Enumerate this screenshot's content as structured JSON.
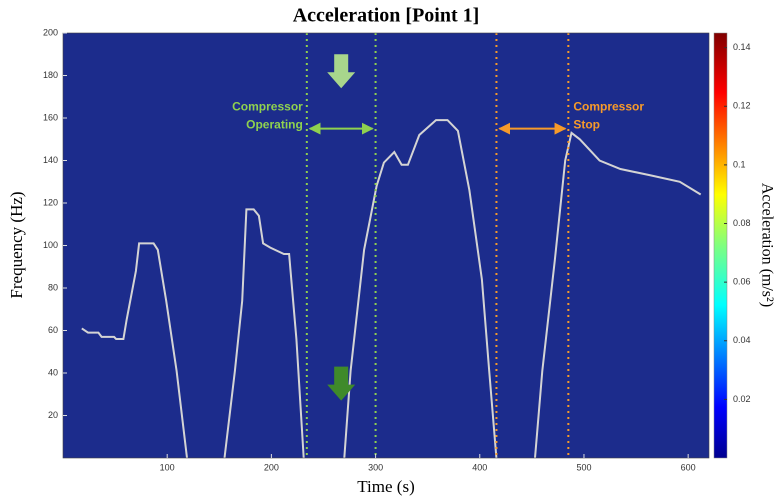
{
  "chart_data": {
    "type": "spectrogram",
    "title": "Acceleration [Point 1]",
    "x_label": "Time (s)",
    "y_label": "Frequency (Hz)",
    "colorbar_label": "Acceleration (m/s²)",
    "xlim": [
      0,
      620
    ],
    "xticks": [
      100,
      200,
      300,
      400,
      500,
      600
    ],
    "ylim": [
      0,
      200
    ],
    "yticks": [
      20,
      40,
      60,
      80,
      100,
      120,
      140,
      160,
      180,
      200
    ],
    "clim": [
      0,
      0.145
    ],
    "cticks": [
      0.02,
      0.04,
      0.06,
      0.08,
      0.1,
      0.12,
      0.14
    ],
    "background_color": "#1c2c8c",
    "line": {
      "color": "#d4d4d4",
      "x": [
        18,
        24,
        34,
        37,
        49,
        51,
        58,
        61,
        70,
        73,
        87,
        91,
        99,
        109,
        119,
        137,
        155,
        165,
        172,
        176,
        183,
        188,
        192,
        199,
        212,
        217,
        224,
        231,
        250,
        270,
        276,
        289,
        301,
        308,
        318,
        325,
        331,
        342,
        358,
        369,
        379,
        390,
        402,
        409,
        416,
        435,
        453,
        460,
        472,
        482,
        488,
        496,
        515,
        535,
        564,
        592,
        612
      ],
      "values": [
        61,
        59,
        59,
        57,
        57,
        56,
        56,
        65,
        88,
        101,
        101,
        98,
        74,
        41,
        0,
        null,
        0,
        41,
        74,
        117,
        117,
        114,
        101,
        99,
        96,
        96,
        56,
        0,
        null,
        0,
        41,
        98,
        128,
        139,
        144,
        138,
        138,
        152,
        159,
        159,
        154,
        126,
        84,
        41,
        0,
        null,
        0,
        41,
        93,
        140,
        153,
        150,
        140,
        136,
        133,
        130,
        124
      ]
    },
    "markers": [
      {
        "x": [
          234,
          300
        ],
        "color": "#8fd14f",
        "label": [
          "Compressor",
          "Operating"
        ]
      },
      {
        "x": [
          416,
          485
        ],
        "color": "#f79a2a",
        "label": [
          "Compressor",
          "Stop"
        ]
      }
    ]
  }
}
